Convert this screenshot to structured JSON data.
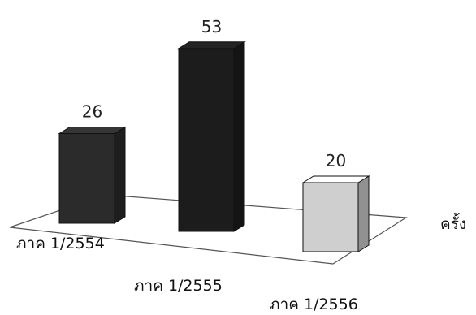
{
  "chart_data": {
    "type": "bar",
    "categories": [
      "ภาค 1/2554",
      "ภาค 1/2555",
      "ภาค 1/2556"
    ],
    "values": [
      26,
      53,
      20
    ],
    "colors": [
      "#2b2b2b",
      "#1c1c1c",
      "#cfcfcf"
    ],
    "ylabel": "ครั้ง",
    "title": "",
    "xlabel": "",
    "ylim": [
      0,
      60
    ],
    "grid": false,
    "legend": "none",
    "style": "3d-bars"
  }
}
